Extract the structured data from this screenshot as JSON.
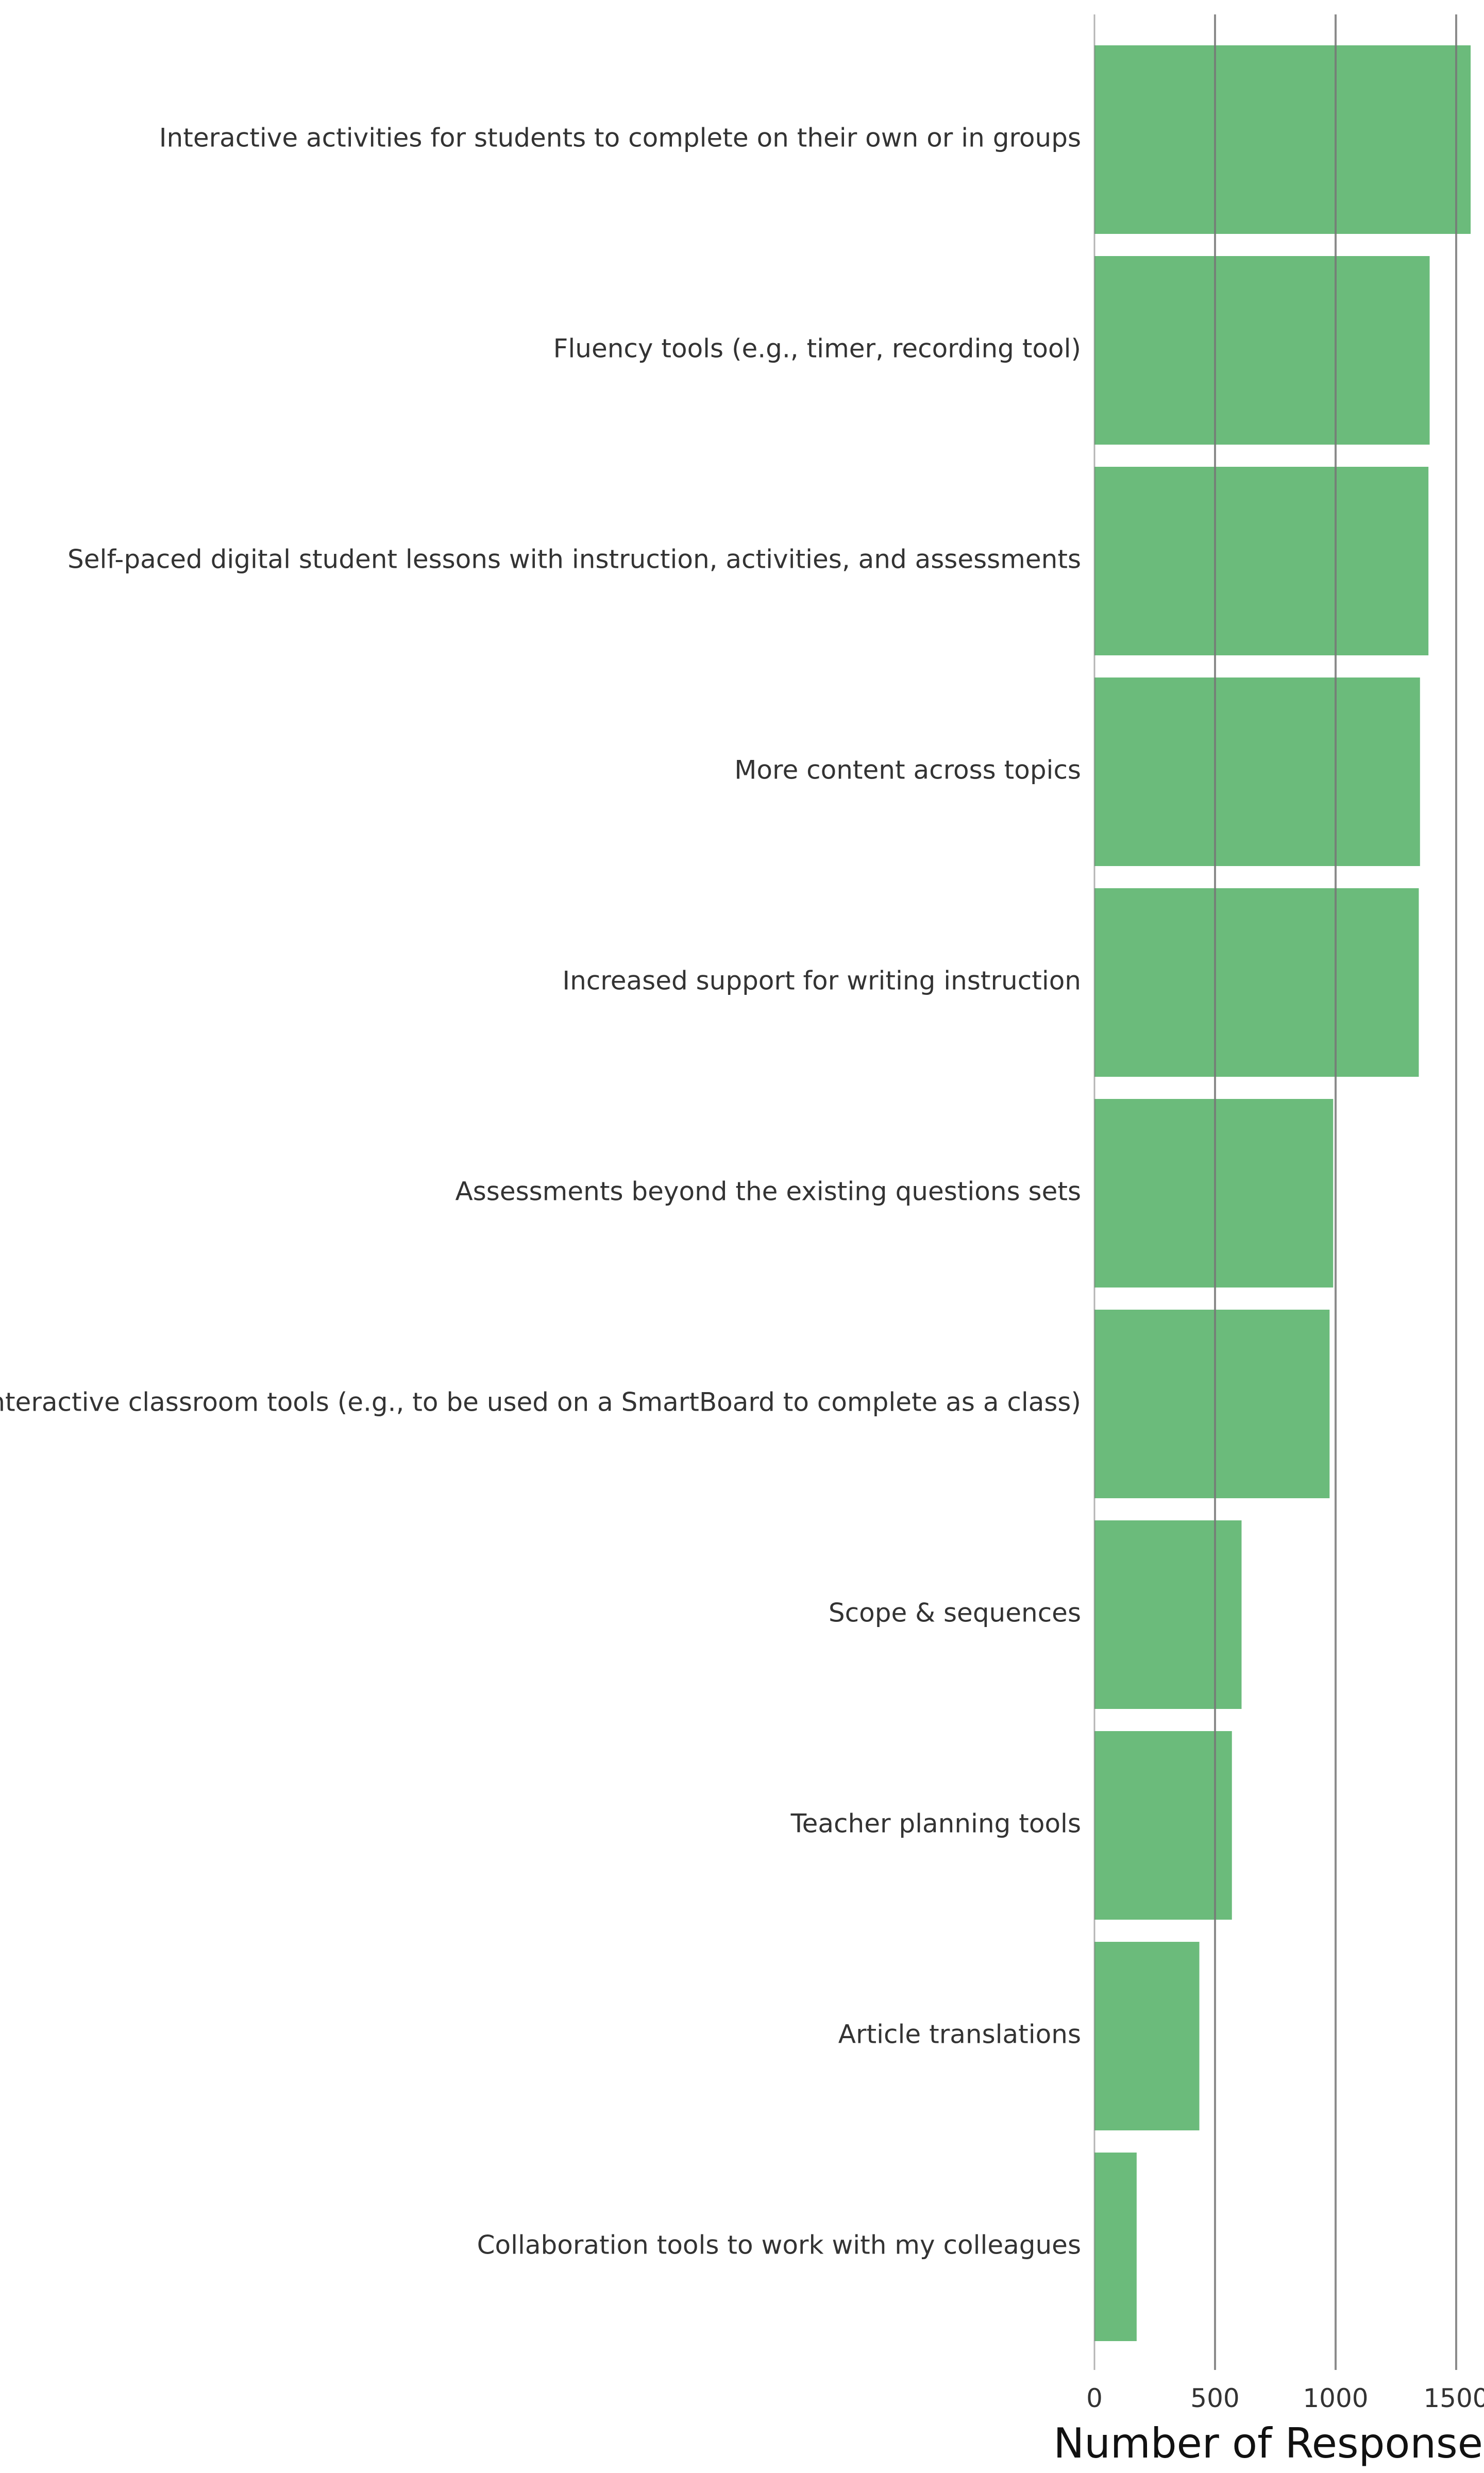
{
  "chart_data": {
    "type": "bar",
    "orientation": "horizontal",
    "title": "",
    "xlabel": "Number of Responses",
    "ylabel": "",
    "categories": [
      "Interactive activities for students to complete on their own or in groups",
      "Fluency tools (e.g., timer, recording tool)",
      "Self-paced digital student lessons with instruction, activities, and assessments",
      "More content across topics",
      "Increased support for writing instruction",
      "Assessments beyond the existing questions sets",
      "Interactive classroom tools (e.g., to be used on a SmartBoard to complete as a class)",
      "Scope & sequences",
      "Teacher planning tools",
      "Article translations",
      "Collaboration tools to work with my colleagues"
    ],
    "values": [
      1560,
      1390,
      1385,
      1350,
      1345,
      990,
      975,
      610,
      570,
      435,
      175
    ],
    "xlim": [
      0,
      1620
    ],
    "xticks": [
      0,
      500,
      1000,
      1500
    ],
    "xtick_labels": [
      "0",
      "500",
      "1000",
      "1500"
    ],
    "grid": "x",
    "legend": "none",
    "bar_color": "#6bbb7b",
    "grid_color": "#777777"
  }
}
